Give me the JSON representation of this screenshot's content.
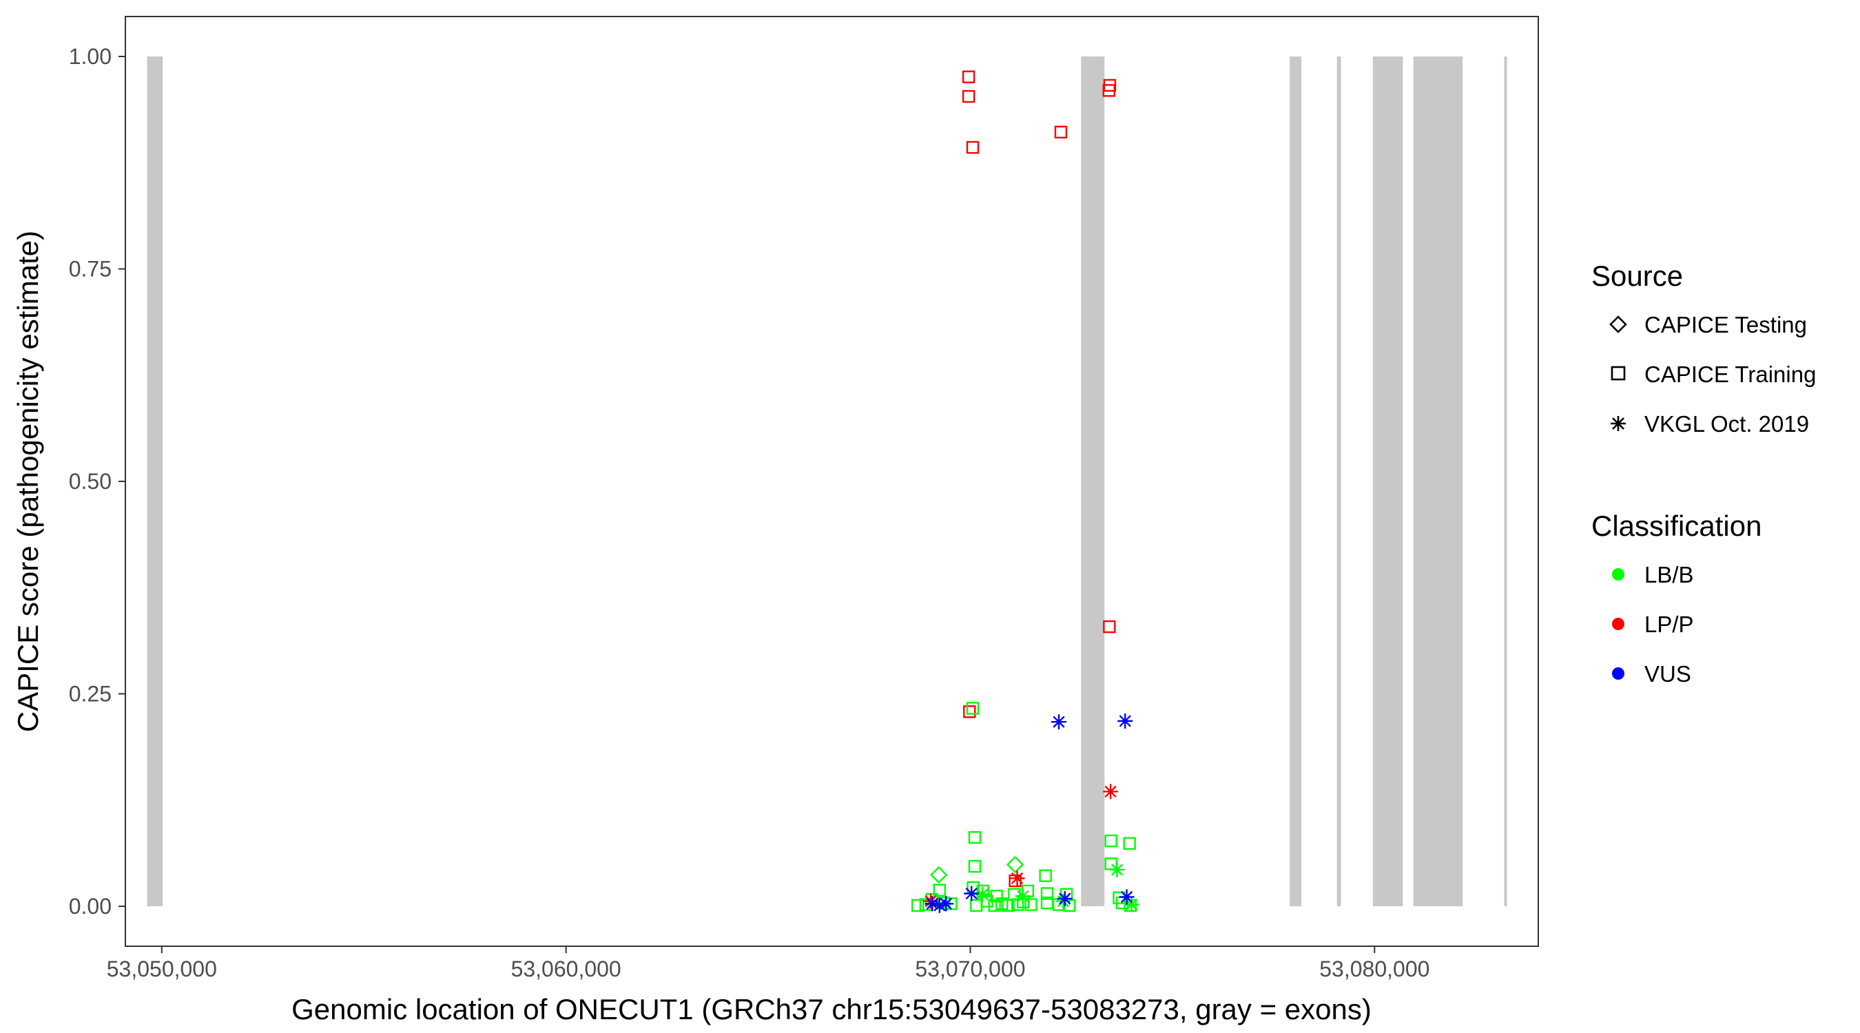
{
  "chart_data": {
    "type": "scatter",
    "xlabel": "Genomic location of ONECUT1 (GRCh37 chr15:53049637-53083273, gray = exons)",
    "ylabel": "CAPICE score (pathogenicity estimate)",
    "xlim": [
      53049100,
      53084050
    ],
    "ylim": [
      -0.047,
      1.047
    ],
    "x_ticks": [
      53050000,
      53060000,
      53070000,
      53080000
    ],
    "x_tick_labels": [
      "53,050,000",
      "53,060,000",
      "53,070,000",
      "53,080,000"
    ],
    "y_ticks": [
      0,
      0.25,
      0.5,
      0.75,
      1
    ],
    "y_tick_labels": [
      "0.00",
      "0.25",
      "0.50",
      "0.75",
      "1.00"
    ],
    "grid": false,
    "exons": [
      [
        53049637,
        53050025
      ],
      [
        53072740,
        53073320
      ],
      [
        53077900,
        53078190
      ],
      [
        53079070,
        53079170
      ],
      [
        53079960,
        53080700
      ],
      [
        53080960,
        53082180
      ],
      [
        53083210,
        53083273
      ]
    ],
    "exon_color": "#c8c8c8",
    "legend_placement": "right",
    "legend": {
      "source_title": "Source",
      "source_items": [
        {
          "label": "CAPICE Testing",
          "shape": "diamond"
        },
        {
          "label": "CAPICE Training",
          "shape": "square"
        },
        {
          "label": "VKGL Oct. 2019",
          "shape": "asterisk"
        }
      ],
      "class_title": "Classification",
      "class_items": [
        {
          "label": "LB/B",
          "color": "#00ff00"
        },
        {
          "label": "LP/P",
          "color": "#ff0000"
        },
        {
          "label": "VUS",
          "color": "#0000ff"
        }
      ]
    },
    "points": [
      {
        "x": 53069960,
        "y": 0.976,
        "shape": "square",
        "cls": "LP/P"
      },
      {
        "x": 53069960,
        "y": 0.953,
        "shape": "square",
        "cls": "LP/P"
      },
      {
        "x": 53070060,
        "y": 0.893,
        "shape": "square",
        "cls": "LP/P"
      },
      {
        "x": 53072240,
        "y": 0.911,
        "shape": "square",
        "cls": "LP/P"
      },
      {
        "x": 53073450,
        "y": 0.966,
        "shape": "square",
        "cls": "LP/P"
      },
      {
        "x": 53073430,
        "y": 0.96,
        "shape": "square",
        "cls": "LP/P"
      },
      {
        "x": 53073440,
        "y": 0.329,
        "shape": "square",
        "cls": "LP/P"
      },
      {
        "x": 53069980,
        "y": 0.229,
        "shape": "square",
        "cls": "LP/P"
      },
      {
        "x": 53070060,
        "y": 0.233,
        "shape": "square",
        "cls": "LB/B"
      },
      {
        "x": 53072190,
        "y": 0.217,
        "shape": "asterisk",
        "cls": "VUS"
      },
      {
        "x": 53073830,
        "y": 0.218,
        "shape": "asterisk",
        "cls": "VUS"
      },
      {
        "x": 53073470,
        "y": 0.135,
        "shape": "asterisk",
        "cls": "LP/P"
      },
      {
        "x": 53070110,
        "y": 0.081,
        "shape": "square",
        "cls": "LB/B"
      },
      {
        "x": 53073480,
        "y": 0.077,
        "shape": "square",
        "cls": "LB/B"
      },
      {
        "x": 53073940,
        "y": 0.074,
        "shape": "square",
        "cls": "LB/B"
      },
      {
        "x": 53070110,
        "y": 0.047,
        "shape": "square",
        "cls": "LB/B"
      },
      {
        "x": 53071110,
        "y": 0.049,
        "shape": "diamond",
        "cls": "LB/B"
      },
      {
        "x": 53073480,
        "y": 0.05,
        "shape": "square",
        "cls": "LB/B"
      },
      {
        "x": 53073630,
        "y": 0.043,
        "shape": "asterisk",
        "cls": "LB/B"
      },
      {
        "x": 53069220,
        "y": 0.037,
        "shape": "diamond",
        "cls": "LB/B"
      },
      {
        "x": 53071860,
        "y": 0.036,
        "shape": "square",
        "cls": "LB/B"
      },
      {
        "x": 53071160,
        "y": 0.033,
        "shape": "asterisk",
        "cls": "LP/P"
      },
      {
        "x": 53071110,
        "y": 0.03,
        "shape": "square",
        "cls": "LP/P"
      },
      {
        "x": 53069240,
        "y": 0.019,
        "shape": "square",
        "cls": "LB/B"
      },
      {
        "x": 53070070,
        "y": 0.022,
        "shape": "square",
        "cls": "LB/B"
      },
      {
        "x": 53070310,
        "y": 0.018,
        "shape": "square",
        "cls": "LB/B"
      },
      {
        "x": 53070650,
        "y": 0.012,
        "shape": "square",
        "cls": "LB/B"
      },
      {
        "x": 53071090,
        "y": 0.014,
        "shape": "square",
        "cls": "LB/B"
      },
      {
        "x": 53071420,
        "y": 0.018,
        "shape": "square",
        "cls": "LB/B"
      },
      {
        "x": 53071900,
        "y": 0.015,
        "shape": "square",
        "cls": "LB/B"
      },
      {
        "x": 53072380,
        "y": 0.014,
        "shape": "square",
        "cls": "LB/B"
      },
      {
        "x": 53073680,
        "y": 0.01,
        "shape": "square",
        "cls": "LB/B"
      },
      {
        "x": 53068700,
        "y": 0.001,
        "shape": "square",
        "cls": "LB/B"
      },
      {
        "x": 53068900,
        "y": 0.002,
        "shape": "square",
        "cls": "LB/B"
      },
      {
        "x": 53069050,
        "y": 0.008,
        "shape": "square",
        "cls": "LB/B"
      },
      {
        "x": 53069350,
        "y": 0.004,
        "shape": "square",
        "cls": "LB/B"
      },
      {
        "x": 53069520,
        "y": 0.003,
        "shape": "square",
        "cls": "LB/B"
      },
      {
        "x": 53070150,
        "y": 0.001,
        "shape": "square",
        "cls": "LB/B"
      },
      {
        "x": 53070410,
        "y": 0.006,
        "shape": "square",
        "cls": "LB/B"
      },
      {
        "x": 53070600,
        "y": 0.001,
        "shape": "square",
        "cls": "LB/B"
      },
      {
        "x": 53070780,
        "y": 0.003,
        "shape": "square",
        "cls": "LB/B"
      },
      {
        "x": 53070940,
        "y": 0.001,
        "shape": "square",
        "cls": "LB/B"
      },
      {
        "x": 53071170,
        "y": 0.002,
        "shape": "square",
        "cls": "LB/B"
      },
      {
        "x": 53071310,
        "y": 0.005,
        "shape": "square",
        "cls": "LB/B"
      },
      {
        "x": 53071500,
        "y": 0.002,
        "shape": "square",
        "cls": "LB/B"
      },
      {
        "x": 53071900,
        "y": 0.004,
        "shape": "square",
        "cls": "LB/B"
      },
      {
        "x": 53072190,
        "y": 0.002,
        "shape": "square",
        "cls": "LB/B"
      },
      {
        "x": 53072450,
        "y": 0.001,
        "shape": "square",
        "cls": "LB/B"
      },
      {
        "x": 53073760,
        "y": 0.004,
        "shape": "square",
        "cls": "LB/B"
      },
      {
        "x": 53073960,
        "y": 0.001,
        "shape": "square",
        "cls": "LB/B"
      },
      {
        "x": 53070300,
        "y": 0.014,
        "shape": "asterisk",
        "cls": "LB/B"
      },
      {
        "x": 53071300,
        "y": 0.012,
        "shape": "asterisk",
        "cls": "LB/B"
      },
      {
        "x": 53072300,
        "y": 0.006,
        "shape": "asterisk",
        "cls": "LB/B"
      },
      {
        "x": 53073990,
        "y": 0.002,
        "shape": "asterisk",
        "cls": "LB/B"
      },
      {
        "x": 53069020,
        "y": 0.006,
        "shape": "asterisk",
        "cls": "LP/P"
      },
      {
        "x": 53069060,
        "y": 0.003,
        "shape": "asterisk",
        "cls": "VUS"
      },
      {
        "x": 53069240,
        "y": 0.001,
        "shape": "asterisk",
        "cls": "VUS"
      },
      {
        "x": 53069400,
        "y": 0.003,
        "shape": "asterisk",
        "cls": "VUS"
      },
      {
        "x": 53070030,
        "y": 0.015,
        "shape": "asterisk",
        "cls": "VUS"
      },
      {
        "x": 53072340,
        "y": 0.009,
        "shape": "asterisk",
        "cls": "VUS"
      },
      {
        "x": 53073870,
        "y": 0.011,
        "shape": "asterisk",
        "cls": "VUS"
      }
    ]
  }
}
